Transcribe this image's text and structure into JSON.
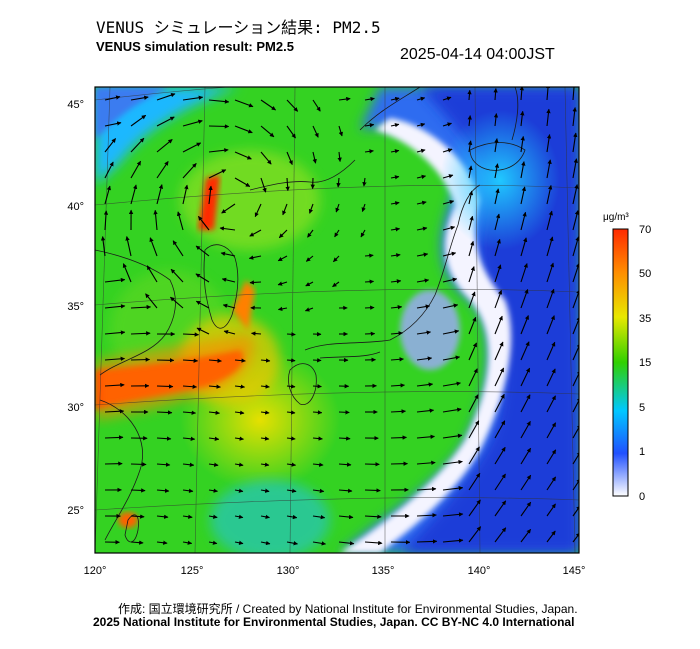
{
  "title_jp": "VENUS シミュレーション結果: PM2.5",
  "title_en": "VENUS simulation result: PM2.5",
  "timestamp": "2025-04-14 04:00JST",
  "colorbar": {
    "unit": "μg/m³",
    "tick_labels": [
      "70",
      "50",
      "35",
      "15",
      "5",
      "1",
      "0"
    ],
    "stops": [
      "#ff2a00",
      "#ff8c00",
      "#e8e800",
      "#30d000",
      "#00c8ff",
      "#2050ff",
      "#ffffff"
    ]
  },
  "map": {
    "lon_labels": [
      "120°",
      "125°",
      "130°",
      "135°",
      "140°",
      "145°"
    ],
    "lat_labels": [
      "45°",
      "40°",
      "35°",
      "30°",
      "25°"
    ]
  },
  "credit": "作成: 国立環境研究所 / Created by National Institute for Environmental Studies, Japan.",
  "copyright": "2025 National Institute for Environmental Studies, Japan. CC BY-NC 4.0 International"
}
